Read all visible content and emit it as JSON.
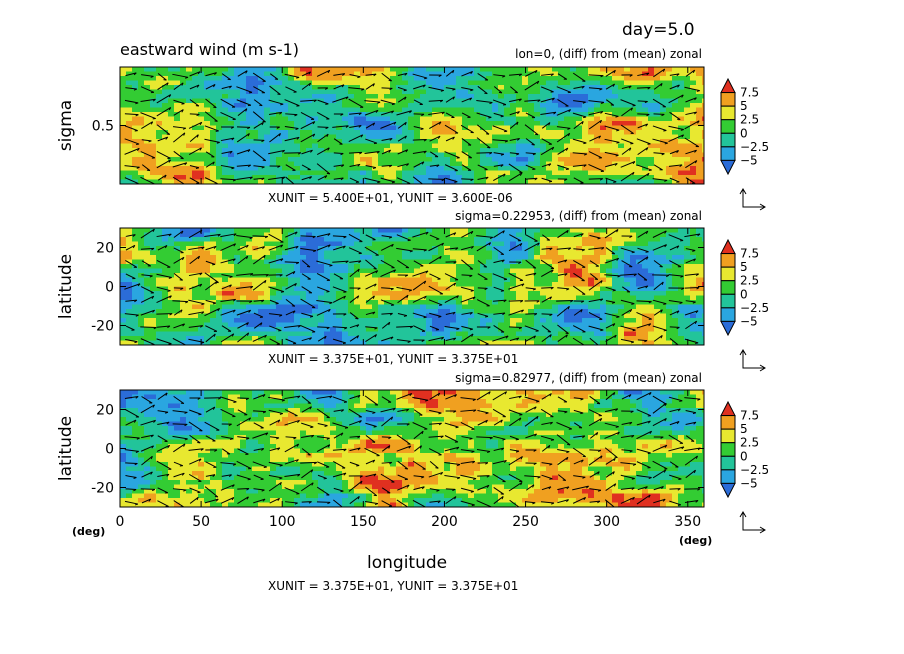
{
  "header": {
    "day_label": "day=5.0",
    "title": "eastward wind (m s-1)"
  },
  "panels": [
    {
      "info": "lon=0, (diff) from (mean) zonal",
      "ylabel": "sigma",
      "yticks": [
        "0.5"
      ],
      "units": "XUNIT = 5.400E+01, YUNIT = 3.600E-06"
    },
    {
      "info": "sigma=0.22953, (diff) from (mean) zonal",
      "ylabel": "latitude",
      "yticks": [
        "20",
        "0",
        "-20"
      ],
      "units": "XUNIT = 3.375E+01, YUNIT = 3.375E+01"
    },
    {
      "info": "sigma=0.82977, (diff) from (mean) zonal",
      "ylabel": "latitude",
      "yticks": [
        "20",
        "0",
        "-20"
      ],
      "units": "XUNIT = 3.375E+01, YUNIT = 3.375E+01"
    }
  ],
  "xaxis": {
    "label": "longitude",
    "unit_left": "(deg)",
    "unit_right": "(deg)",
    "ticks": [
      "0",
      "50",
      "100",
      "150",
      "200",
      "250",
      "300",
      "350"
    ]
  },
  "colorbar": {
    "labels": [
      "7.5",
      "5",
      "2.5",
      "0",
      "−2.5",
      "−5"
    ],
    "colors": [
      "#2b6cd8",
      "#2aa6e0",
      "#22c49a",
      "#33cc33",
      "#e8e830",
      "#f0a020",
      "#e03020"
    ]
  },
  "chart_data": {
    "type": "heatmap",
    "title": "eastward wind (m s-1)",
    "time": "day=5.0",
    "contour_levels": [
      -5,
      -2.5,
      0,
      2.5,
      5,
      7.5
    ],
    "panels": [
      {
        "section": "lon=0, (diff) from (mean) zonal",
        "x_range": [
          0,
          360
        ],
        "y_label": "sigma",
        "y_range": [
          0,
          1
        ],
        "y_ticks": [
          0.5
        ]
      },
      {
        "section": "sigma=0.22953, (diff) from (mean) zonal",
        "x_range": [
          0,
          360
        ],
        "y_label": "latitude",
        "y_range": [
          -30,
          30
        ],
        "y_ticks": [
          -20,
          0,
          20
        ]
      },
      {
        "section": "sigma=0.82977, (diff) from (mean) zonal",
        "x_range": [
          0,
          360
        ],
        "y_label": "latitude",
        "y_range": [
          -30,
          30
        ],
        "y_ticks": [
          -20,
          0,
          20
        ]
      }
    ],
    "x_label": "longitude",
    "x_ticks": [
      0,
      50,
      100,
      150,
      200,
      250,
      300,
      350
    ],
    "overlay": "wind vectors"
  }
}
